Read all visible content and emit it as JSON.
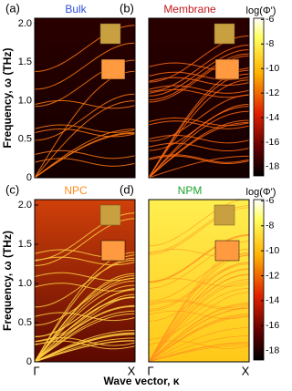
{
  "chart_data": [
    {
      "type": "heatmap",
      "label": "(a)",
      "title": "Bulk",
      "title_color": "#2f4fd8",
      "background": [
        "#2a0000",
        "#140000"
      ],
      "ylim": [
        0,
        2.07
      ],
      "yticks": [
        0,
        0.5,
        {
          "value": 1,
          "label": "1.0"
        },
        1.5,
        {
          "value": 2,
          "label": "2.0"
        }
      ],
      "ylabel": "Frequency, ω (THz)"
    },
    {
      "type": "heatmap",
      "label": "(b)",
      "title": "Membrane",
      "title_color": "#c0171d",
      "background": [
        "#2a0000",
        "#140000"
      ],
      "ylim": [
        0,
        2.07
      ],
      "colorbar": {
        "label": "log(Φ')",
        "lim": [
          -18.75,
          -5.9
        ],
        "ticks": [
          -6,
          -8,
          -10,
          -12,
          -14,
          -16,
          -18
        ]
      }
    },
    {
      "type": "heatmap",
      "label": "(c)",
      "title": "NPC",
      "title_color": "#ff8a1c",
      "background": [
        "#d0400a",
        "#5a0800"
      ],
      "ylim": [
        0,
        2.07
      ],
      "yticks": [
        0,
        0.5,
        {
          "value": 1,
          "label": "1.0"
        },
        1.5,
        {
          "value": 2,
          "label": "2.0"
        }
      ],
      "ylabel": "Frequency, ω (THz)",
      "categories": [
        "Γ",
        "X"
      ]
    },
    {
      "type": "heatmap",
      "label": "(d)",
      "title": "NPM",
      "title_color": "#1fa52a",
      "background": [
        "#ffee50",
        "#ffc818"
      ],
      "ylim": [
        0,
        2.07
      ],
      "categories": [
        "Γ",
        "X"
      ],
      "colorbar": {
        "label": "log(Φ')",
        "lim": [
          -18.75,
          -5.9
        ],
        "ticks": [
          -6,
          -8,
          -10,
          -12,
          -14,
          -16,
          -18
        ]
      }
    }
  ],
  "xlabel": "Wave vector, κ"
}
